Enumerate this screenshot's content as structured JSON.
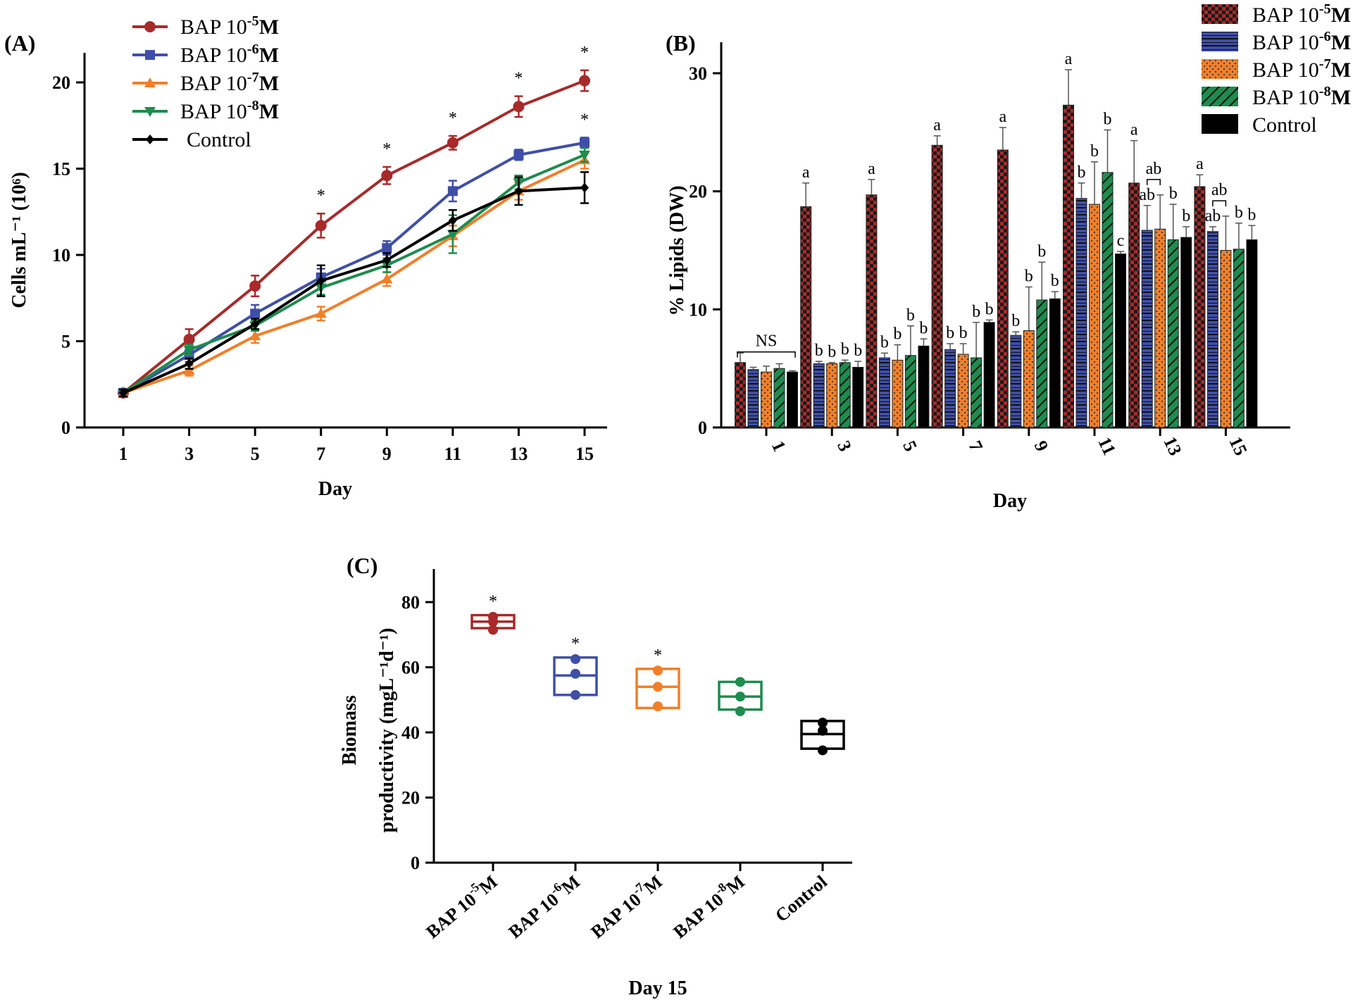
{
  "colors": {
    "bap5": "#a82a2a",
    "bap6": "#3f4fa8",
    "bap7": "#f07f2a",
    "bap8": "#1e8c4e",
    "control": "#000000"
  },
  "panelA": {
    "label": "(A)",
    "chart_data": {
      "type": "line",
      "xlabel": "Day",
      "ylabel": "Cells mL⁻¹ (10⁶)",
      "x": [
        1,
        3,
        5,
        7,
        9,
        11,
        13,
        15
      ],
      "xticks": [
        "1",
        "3",
        "5",
        "7",
        "9",
        "11",
        "13",
        "15"
      ],
      "ylim": [
        0,
        22
      ],
      "yticks": [
        "0",
        "5",
        "10",
        "15",
        "20"
      ],
      "series": [
        {
          "name": "BAP 10⁻⁵M",
          "color": "#a82a2a",
          "marker": "circle",
          "values": [
            2.0,
            5.1,
            8.2,
            11.7,
            14.6,
            16.5,
            18.6,
            20.1
          ],
          "err": [
            0.2,
            0.6,
            0.6,
            0.7,
            0.5,
            0.4,
            0.6,
            0.6
          ]
        },
        {
          "name": "BAP 10⁻⁶M",
          "color": "#3f4fa8",
          "marker": "square",
          "values": [
            2.0,
            4.2,
            6.6,
            8.7,
            10.4,
            13.7,
            15.8,
            16.5
          ],
          "err": [
            0.2,
            0.4,
            0.5,
            0.5,
            0.4,
            0.6,
            0.3,
            0.3
          ]
        },
        {
          "name": "BAP 10⁻⁷M",
          "color": "#f07f2a",
          "marker": "triangle-up",
          "values": [
            2.0,
            3.3,
            5.3,
            6.6,
            8.6,
            11.1,
            13.7,
            15.5
          ],
          "err": [
            0.2,
            0.3,
            0.4,
            0.4,
            0.4,
            0.6,
            0.5,
            0.5
          ]
        },
        {
          "name": "BAP 10⁻⁸M",
          "color": "#1e8c4e",
          "marker": "triangle-down",
          "values": [
            2.0,
            4.5,
            5.9,
            8.1,
            9.4,
            11.2,
            14.2,
            15.8
          ],
          "err": [
            0.2,
            0.3,
            0.3,
            0.4,
            0.4,
            1.1,
            0.4,
            0.4
          ]
        },
        {
          "name": "Control",
          "color": "#000000",
          "marker": "diamond",
          "values": [
            2.0,
            3.7,
            6.0,
            8.5,
            9.7,
            12.0,
            13.7,
            13.9
          ],
          "err": [
            0.2,
            0.3,
            0.3,
            0.9,
            0.4,
            0.6,
            0.8,
            0.9
          ]
        }
      ],
      "annotations": [
        {
          "text": "*",
          "x": 7,
          "series": 0
        },
        {
          "text": "*",
          "x": 9,
          "series": 0
        },
        {
          "text": "*",
          "x": 11,
          "series": 0
        },
        {
          "text": "*",
          "x": 13,
          "series": 0
        },
        {
          "text": "*",
          "x": 15,
          "series": 0
        },
        {
          "text": "*",
          "x": 15,
          "series": 1
        }
      ],
      "legend": [
        {
          "base": "BAP 10",
          "exp": "-5",
          "unit": "M"
        },
        {
          "base": "BAP 10",
          "exp": "-6",
          "unit": "M"
        },
        {
          "base": "BAP 10",
          "exp": "-7",
          "unit": "M"
        },
        {
          "base": "BAP 10",
          "exp": "-8",
          "unit": "M"
        },
        {
          "base": "Control",
          "exp": "",
          "unit": ""
        }
      ]
    }
  },
  "panelB": {
    "label": "(B)",
    "chart_data": {
      "type": "bar",
      "xlabel": "Day",
      "ylabel": "% Lipids (DW)",
      "categories": [
        "1",
        "3",
        "5",
        "7",
        "9",
        "11",
        "13",
        "15"
      ],
      "ylim": [
        0,
        32
      ],
      "yticks": [
        "0",
        "10",
        "20",
        "30"
      ],
      "series": [
        {
          "name": "BAP 10⁻⁵M",
          "color": "#a82a2a",
          "pattern": "checker",
          "values": [
            5.5,
            18.7,
            19.7,
            23.9,
            23.5,
            27.3,
            20.7,
            20.4
          ],
          "err": [
            0.8,
            2.0,
            1.3,
            0.8,
            1.9,
            3.0,
            3.6,
            1.0
          ],
          "labels": [
            "",
            "a",
            "a",
            "a",
            "a",
            "a",
            "a",
            "a"
          ]
        },
        {
          "name": "BAP 10⁻⁶M",
          "color": "#3f4fa8",
          "pattern": "grid",
          "values": [
            4.9,
            5.4,
            5.9,
            6.6,
            7.8,
            19.4,
            16.7,
            16.6
          ],
          "err": [
            0.2,
            0.2,
            0.4,
            0.5,
            0.3,
            1.3,
            2.1,
            0.4
          ],
          "labels": [
            "",
            "b",
            "b",
            "b",
            "b",
            "b",
            "ab",
            "ab"
          ]
        },
        {
          "name": "BAP 10⁻⁷M",
          "color": "#f07f2a",
          "pattern": "dots",
          "values": [
            4.7,
            5.4,
            5.7,
            6.2,
            8.2,
            18.9,
            16.8,
            15.0
          ],
          "err": [
            0.5,
            0.1,
            1.3,
            0.9,
            3.7,
            3.6,
            2.9,
            2.9
          ],
          "labels": [
            "",
            "b",
            "b",
            "b",
            "b",
            "b",
            "",
            ""
          ]
        },
        {
          "name": "BAP 10⁻⁸M",
          "color": "#1e8c4e",
          "pattern": "diagonal",
          "values": [
            5.0,
            5.5,
            6.1,
            5.9,
            10.8,
            21.6,
            15.9,
            15.1
          ],
          "err": [
            0.4,
            0.2,
            2.5,
            3.0,
            3.2,
            3.6,
            3.0,
            2.2
          ],
          "labels": [
            "",
            "b",
            "b",
            "b",
            "b",
            "b",
            "b",
            "b"
          ]
        },
        {
          "name": "Control",
          "color": "#000000",
          "pattern": "solid",
          "values": [
            4.7,
            5.1,
            6.9,
            8.9,
            10.9,
            14.7,
            16.1,
            15.9
          ],
          "err": [
            0.1,
            0.5,
            0.6,
            0.2,
            0.6,
            0.2,
            0.9,
            1.2
          ],
          "labels": [
            "",
            "b",
            "b",
            "b",
            "b",
            "c",
            "b",
            "b"
          ]
        }
      ],
      "bracket_labels": [
        {
          "category": "1",
          "text": "NS"
        },
        {
          "category": "13",
          "text": "ab"
        },
        {
          "category": "15",
          "text": "ab"
        }
      ],
      "legend": [
        {
          "base": "BAP 10",
          "exp": "-5",
          "unit": "M"
        },
        {
          "base": "BAP 10",
          "exp": "-6",
          "unit": "M"
        },
        {
          "base": "BAP 10",
          "exp": "-7",
          "unit": "M"
        },
        {
          "base": "BAP 10",
          "exp": "-8",
          "unit": "M"
        },
        {
          "base": "Control",
          "exp": "",
          "unit": ""
        }
      ]
    }
  },
  "panelC": {
    "label": "(C)",
    "chart_data": {
      "type": "box",
      "xlabel": "Day 15",
      "ylabel_line1": "Biomass",
      "ylabel_line2": "productivity (mgL⁻¹d⁻¹)",
      "ylim": [
        0,
        90
      ],
      "yticks": [
        "0",
        "20",
        "40",
        "60",
        "80"
      ],
      "categories": [
        {
          "base": "BAP 10",
          "exp": "-5",
          "unit": "M"
        },
        {
          "base": "BAP 10",
          "exp": "-6",
          "unit": "M"
        },
        {
          "base": "BAP 10",
          "exp": "-7",
          "unit": "M"
        },
        {
          "base": "BAP 10",
          "exp": "-8",
          "unit": "M"
        },
        {
          "base": "Control",
          "exp": "",
          "unit": ""
        }
      ],
      "groups": [
        {
          "color": "#a82a2a",
          "low": 72,
          "median": 74,
          "high": 76,
          "points": [
            71.5,
            74,
            75.5
          ],
          "star": "*"
        },
        {
          "color": "#3f4fa8",
          "low": 51.5,
          "median": 57.5,
          "high": 63,
          "points": [
            51.5,
            58,
            62.5
          ],
          "star": "*"
        },
        {
          "color": "#f07f2a",
          "low": 47.5,
          "median": 54,
          "high": 59.5,
          "points": [
            48,
            54,
            59
          ],
          "star": "*"
        },
        {
          "color": "#1e8c4e",
          "low": 47,
          "median": 51,
          "high": 55.5,
          "points": [
            46.5,
            51,
            55.5
          ],
          "star": ""
        },
        {
          "color": "#000000",
          "low": 35,
          "median": 39.5,
          "high": 43.5,
          "points": [
            34.5,
            40.5,
            43
          ],
          "star": ""
        }
      ]
    }
  }
}
